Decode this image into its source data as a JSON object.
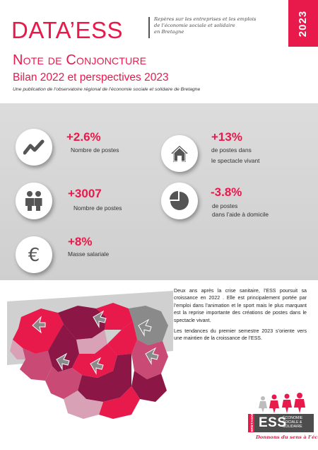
{
  "header": {
    "logo": "DATA’ESS",
    "tagline": [
      "Repères sur les entreprises et les emplois",
      "de l’économie sociale et solidaire",
      "en Bretagne"
    ],
    "year": "2023"
  },
  "title": {
    "note": "Note de Conjoncture",
    "subtitle": "Bilan 2022 et perspectives 2023",
    "publication": "Une publication de l’observatoire régional de l’économie sociale et solidaire de Bretagne"
  },
  "stats": [
    {
      "value": "+2.6%",
      "label1": "Nombre de postes",
      "label2": "",
      "icon": "trend-icon"
    },
    {
      "value": "+13%",
      "label1": "de postes dans",
      "label2": "le spectacle vivant",
      "icon": "house-icon"
    },
    {
      "value": "+3007",
      "label1": "Nombre de postes",
      "label2": "",
      "icon": "people-icon"
    },
    {
      "value": "-3.8%",
      "label1": "de postes",
      "label2": "dans l’aide à domicile",
      "icon": "pie-icon"
    },
    {
      "value": "+8%",
      "label1": "Masse salariale",
      "label2": "",
      "icon": "euro-icon"
    }
  ],
  "summary": {
    "p1": "Deux ans après la crise sanitaire, l’ESS poursuit sa croissance en 2022 . Elle est principalement portée par l’emploi dans l’animation et le sport mais le plus marquant est la reprise importante des créations de postes dans le spectacle vivant.",
    "p2": "Les tendances du premier semestre 2023 s’oriente vers une maintien de la croissance de l’ESS."
  },
  "ess_logo": {
    "ess": "ESS",
    "sub": [
      "ÉCONOMIE",
      "SOCIALE &",
      "SOLIDAIRE"
    ],
    "region": "BRETAGNE",
    "slogan": "Donnons du sens à l’économie"
  },
  "colors": {
    "brand": "#e8194b",
    "grey_band": "#d4d4d4",
    "map_dark": "#8c1747",
    "map_mid": "#c94a74",
    "map_light": "#d9a1b5",
    "map_grey": "#8a8a8a"
  }
}
